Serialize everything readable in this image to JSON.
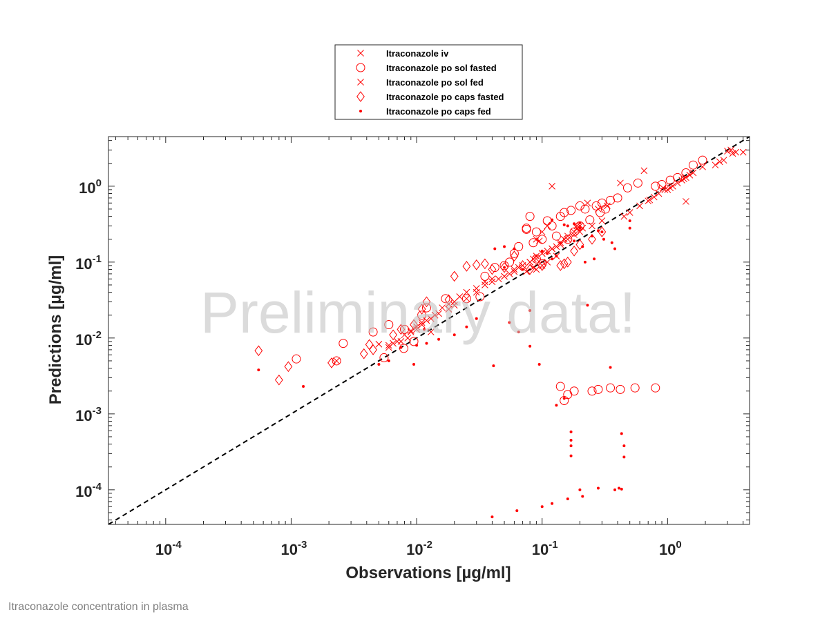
{
  "footer_caption": "Itraconazole concentration in plasma",
  "watermark": "Preliminary data!",
  "colors": {
    "series": "#ff0000",
    "identity_line": "#000000",
    "watermark": "#bdbdbd",
    "caption": "#808080"
  },
  "chart_data": {
    "type": "scatter",
    "xscale": "log",
    "yscale": "log",
    "xlabel": "Observations [µg/ml]",
    "ylabel": "Predictions [µg/ml]",
    "xlim": [
      3.5e-05,
      4.5
    ],
    "ylim": [
      3.5e-05,
      4.5
    ],
    "xticks": [
      {
        "base": "10",
        "exp": "-4",
        "value": 0.0001
      },
      {
        "base": "10",
        "exp": "-3",
        "value": 0.001
      },
      {
        "base": "10",
        "exp": "-2",
        "value": 0.01
      },
      {
        "base": "10",
        "exp": "-1",
        "value": 0.1
      },
      {
        "base": "10",
        "exp": "0",
        "value": 1
      }
    ],
    "yticks": [
      {
        "base": "10",
        "exp": "-4",
        "value": 0.0001
      },
      {
        "base": "10",
        "exp": "-3",
        "value": 0.001
      },
      {
        "base": "10",
        "exp": "-2",
        "value": 0.01
      },
      {
        "base": "10",
        "exp": "-1",
        "value": 0.1
      },
      {
        "base": "10",
        "exp": "0",
        "value": 1
      }
    ],
    "identity_line": true,
    "legend_position": "top-center-outside",
    "series": [
      {
        "name": "Itraconazole iv",
        "marker": "x",
        "points": [
          [
            0.65,
            1.6
          ],
          [
            0.12,
            1.0
          ],
          [
            0.23,
            0.6
          ],
          [
            0.42,
            1.1
          ],
          [
            3.0,
            2.9
          ],
          [
            3.2,
            3.0
          ],
          [
            3.5,
            2.8
          ],
          [
            4.0,
            2.8
          ],
          [
            2.8,
            2.2
          ],
          [
            2.4,
            1.9
          ],
          [
            2.6,
            2.1
          ],
          [
            3.3,
            2.7
          ],
          [
            1.5,
            1.4
          ],
          [
            1.4,
            1.3
          ],
          [
            1.3,
            1.2
          ],
          [
            1.2,
            1.1
          ],
          [
            1.1,
            1.0
          ],
          [
            1.05,
            0.95
          ],
          [
            0.95,
            0.9
          ],
          [
            0.85,
            0.8
          ],
          [
            0.78,
            0.72
          ],
          [
            0.72,
            0.66
          ],
          [
            0.7,
            0.64
          ],
          [
            0.92,
            0.95
          ],
          [
            1.0,
            0.9
          ],
          [
            1.35,
            1.25
          ],
          [
            1.6,
            1.5
          ],
          [
            1.9,
            1.8
          ],
          [
            0.6,
            0.55
          ],
          [
            0.5,
            0.45
          ],
          [
            0.45,
            0.4
          ],
          [
            1.4,
            0.63
          ],
          [
            0.33,
            0.55
          ],
          [
            0.28,
            0.5
          ],
          [
            0.2,
            0.3
          ],
          [
            0.19,
            0.28
          ],
          [
            0.18,
            0.25
          ],
          [
            0.16,
            0.22
          ],
          [
            0.15,
            0.2
          ],
          [
            0.14,
            0.18
          ],
          [
            0.13,
            0.16
          ],
          [
            0.12,
            0.15
          ],
          [
            0.11,
            0.14
          ],
          [
            0.1,
            0.13
          ],
          [
            0.09,
            0.12
          ],
          [
            0.085,
            0.11
          ],
          [
            0.08,
            0.1
          ],
          [
            0.07,
            0.09
          ],
          [
            0.065,
            0.085
          ],
          [
            0.06,
            0.08
          ],
          [
            0.055,
            0.07
          ],
          [
            0.05,
            0.065
          ],
          [
            0.045,
            0.06
          ],
          [
            0.04,
            0.055
          ],
          [
            0.035,
            0.05
          ],
          [
            0.03,
            0.045
          ],
          [
            0.025,
            0.04
          ],
          [
            0.022,
            0.035
          ],
          [
            0.02,
            0.03
          ],
          [
            0.018,
            0.028
          ],
          [
            0.016,
            0.025
          ],
          [
            0.014,
            0.02
          ],
          [
            0.012,
            0.017
          ],
          [
            0.011,
            0.015
          ],
          [
            0.01,
            0.013
          ],
          [
            0.009,
            0.012
          ],
          [
            0.008,
            0.011
          ],
          [
            0.007,
            0.009
          ],
          [
            0.006,
            0.008
          ],
          [
            0.005,
            0.0083
          ],
          [
            0.0023,
            0.005
          ],
          [
            0.013,
            0.012
          ],
          [
            0.1,
            0.25
          ],
          [
            0.11,
            0.3
          ],
          [
            0.095,
            0.19
          ],
          [
            0.09,
            0.2
          ],
          [
            0.13,
            0.12
          ],
          [
            0.11,
            0.1
          ],
          [
            0.1,
            0.09
          ],
          [
            0.085,
            0.085
          ],
          [
            0.075,
            0.075
          ],
          [
            0.09,
            0.08
          ]
        ]
      },
      {
        "name": "Itraconazole po sol fasted",
        "marker": "o",
        "points": [
          [
            1.9,
            2.2
          ],
          [
            1.6,
            1.9
          ],
          [
            1.4,
            1.5
          ],
          [
            1.2,
            1.3
          ],
          [
            1.05,
            1.2
          ],
          [
            0.9,
            1.05
          ],
          [
            0.8,
            1.0
          ],
          [
            0.58,
            1.1
          ],
          [
            0.48,
            0.95
          ],
          [
            0.4,
            0.7
          ],
          [
            0.35,
            0.65
          ],
          [
            0.3,
            0.6
          ],
          [
            0.27,
            0.55
          ],
          [
            0.22,
            0.5
          ],
          [
            0.2,
            0.55
          ],
          [
            0.17,
            0.48
          ],
          [
            0.15,
            0.45
          ],
          [
            0.14,
            0.4
          ],
          [
            0.11,
            0.35
          ],
          [
            0.08,
            0.4
          ],
          [
            0.075,
            0.28
          ],
          [
            0.09,
            0.25
          ],
          [
            0.12,
            0.3
          ],
          [
            0.13,
            0.22
          ],
          [
            0.1,
            0.2
          ],
          [
            0.085,
            0.18
          ],
          [
            0.065,
            0.16
          ],
          [
            0.06,
            0.13
          ],
          [
            0.055,
            0.1
          ],
          [
            0.05,
            0.09
          ],
          [
            0.042,
            0.085
          ],
          [
            0.035,
            0.065
          ],
          [
            0.032,
            0.035
          ],
          [
            0.025,
            0.033
          ],
          [
            0.017,
            0.033
          ],
          [
            0.012,
            0.025
          ],
          [
            0.011,
            0.02
          ],
          [
            0.008,
            0.013
          ],
          [
            0.006,
            0.015
          ],
          [
            0.0055,
            0.0055
          ],
          [
            0.0045,
            0.012
          ],
          [
            0.0026,
            0.0085
          ],
          [
            0.0011,
            0.0053
          ],
          [
            0.0095,
            0.009
          ],
          [
            0.0079,
            0.0073
          ],
          [
            0.0023,
            0.005
          ],
          [
            0.14,
            0.0023
          ],
          [
            0.16,
            0.0018
          ],
          [
            0.18,
            0.002
          ],
          [
            0.15,
            0.0015
          ],
          [
            0.25,
            0.002
          ],
          [
            0.28,
            0.0021
          ],
          [
            0.35,
            0.0022
          ],
          [
            0.42,
            0.0021
          ],
          [
            0.55,
            0.0022
          ],
          [
            0.8,
            0.0022
          ],
          [
            0.29,
            0.45
          ],
          [
            0.32,
            0.5
          ],
          [
            0.24,
            0.36
          ],
          [
            0.2,
            0.3
          ],
          [
            0.18,
            0.25
          ],
          [
            0.16,
            0.2
          ],
          [
            0.075,
            0.27
          ],
          [
            0.1,
            0.095
          ],
          [
            0.09,
            0.11
          ]
        ]
      },
      {
        "name": "Itraconazole po sol fed",
        "marker": "x",
        "points": [
          [
            0.3,
            0.35
          ],
          [
            0.25,
            0.3
          ],
          [
            0.2,
            0.25
          ],
          [
            0.18,
            0.23
          ],
          [
            0.16,
            0.2
          ],
          [
            0.14,
            0.17
          ],
          [
            0.12,
            0.15
          ],
          [
            0.1,
            0.13
          ],
          [
            0.09,
            0.11
          ],
          [
            0.08,
            0.1
          ],
          [
            0.07,
            0.09
          ],
          [
            0.06,
            0.075
          ],
          [
            0.05,
            0.065
          ],
          [
            0.04,
            0.06
          ],
          [
            0.035,
            0.055
          ],
          [
            0.03,
            0.04
          ],
          [
            0.025,
            0.033
          ],
          [
            0.02,
            0.027
          ],
          [
            0.018,
            0.024
          ],
          [
            0.015,
            0.021
          ],
          [
            0.013,
            0.018
          ],
          [
            0.011,
            0.016
          ],
          [
            0.01,
            0.014
          ],
          [
            0.009,
            0.0125
          ],
          [
            0.0085,
            0.01
          ],
          [
            0.0075,
            0.009
          ],
          [
            0.0065,
            0.0085
          ],
          [
            0.006,
            0.0075
          ],
          [
            0.19,
            0.3
          ],
          [
            0.21,
            0.28
          ]
        ]
      },
      {
        "name": "Itraconazole po caps fasted",
        "marker": "diamond",
        "points": [
          [
            0.00055,
            0.0068
          ],
          [
            0.0008,
            0.0028
          ],
          [
            0.00095,
            0.0042
          ],
          [
            0.0021,
            0.0047
          ],
          [
            0.0038,
            0.0062
          ],
          [
            0.0042,
            0.0082
          ],
          [
            0.0045,
            0.007
          ],
          [
            0.0065,
            0.011
          ],
          [
            0.0075,
            0.013
          ],
          [
            0.0095,
            0.015
          ],
          [
            0.011,
            0.024
          ],
          [
            0.012,
            0.03
          ],
          [
            0.018,
            0.032
          ],
          [
            0.02,
            0.065
          ],
          [
            0.025,
            0.088
          ],
          [
            0.03,
            0.092
          ],
          [
            0.035,
            0.095
          ],
          [
            0.04,
            0.08
          ],
          [
            0.06,
            0.12
          ],
          [
            0.08,
            0.08
          ],
          [
            0.1,
            0.09
          ],
          [
            0.14,
            0.09
          ],
          [
            0.15,
            0.095
          ],
          [
            0.16,
            0.1
          ],
          [
            0.18,
            0.14
          ],
          [
            0.2,
            0.17
          ],
          [
            0.25,
            0.2
          ],
          [
            0.3,
            0.25
          ],
          [
            0.05,
            0.085
          ],
          [
            0.07,
            0.09
          ]
        ]
      },
      {
        "name": "Itraconazole po caps fed",
        "marker": "dot",
        "points": [
          [
            0.00055,
            0.0038
          ],
          [
            0.0095,
            0.0045
          ],
          [
            0.00125,
            0.0023
          ],
          [
            0.041,
            0.0043
          ],
          [
            0.042,
            0.15
          ],
          [
            0.05,
            0.16
          ],
          [
            0.06,
            0.15
          ],
          [
            0.08,
            0.023
          ],
          [
            0.08,
            0.0078
          ],
          [
            0.095,
            0.0045
          ],
          [
            0.12,
            0.36
          ],
          [
            0.15,
            0.31
          ],
          [
            0.16,
            0.3
          ],
          [
            0.18,
            0.32
          ],
          [
            0.2,
            0.33
          ],
          [
            0.3,
            0.25
          ],
          [
            0.31,
            0.2
          ],
          [
            0.36,
            0.18
          ],
          [
            0.38,
            0.15
          ],
          [
            0.5,
            0.35
          ],
          [
            0.5,
            0.28
          ],
          [
            0.2,
            0.28
          ],
          [
            0.21,
            0.16
          ],
          [
            0.23,
            0.027
          ],
          [
            0.22,
            0.1
          ],
          [
            0.26,
            0.11
          ],
          [
            0.13,
            0.0013
          ],
          [
            0.15,
            0.0016
          ],
          [
            0.17,
            0.00058
          ],
          [
            0.17,
            0.00045
          ],
          [
            0.17,
            0.00038
          ],
          [
            0.17,
            0.00028
          ],
          [
            0.43,
            0.00055
          ],
          [
            0.45,
            0.00038
          ],
          [
            0.45,
            0.00027
          ],
          [
            0.2,
            0.0001
          ],
          [
            0.21,
            8.2e-05
          ],
          [
            0.28,
            0.000105
          ],
          [
            0.38,
            0.0001
          ],
          [
            0.43,
            0.000102
          ],
          [
            0.41,
            0.000105
          ],
          [
            0.16,
            7.6e-05
          ],
          [
            0.12,
            6.6e-05
          ],
          [
            0.1,
            6e-05
          ],
          [
            0.063,
            5.3e-05
          ],
          [
            0.04,
            4.4e-05
          ],
          [
            0.35,
            0.0041
          ],
          [
            0.05,
            0.085
          ],
          [
            0.07,
            0.08
          ],
          [
            0.055,
            0.016
          ],
          [
            0.065,
            0.012
          ],
          [
            0.03,
            0.018
          ],
          [
            0.025,
            0.014
          ],
          [
            0.02,
            0.011
          ],
          [
            0.015,
            0.0096
          ],
          [
            0.012,
            0.0085
          ],
          [
            0.01,
            0.008
          ],
          [
            0.0075,
            0.0075
          ],
          [
            0.006,
            0.005
          ],
          [
            0.005,
            0.0045
          ],
          [
            0.0115,
            0.013
          ],
          [
            0.14,
            0.18
          ],
          [
            0.1,
            0.14
          ],
          [
            0.09,
            0.12
          ],
          [
            0.11,
            0.13
          ],
          [
            0.12,
            0.11
          ],
          [
            0.13,
            0.12
          ],
          [
            0.25,
            0.22
          ],
          [
            0.28,
            0.26
          ],
          [
            0.18,
            0.19
          ]
        ]
      }
    ]
  }
}
